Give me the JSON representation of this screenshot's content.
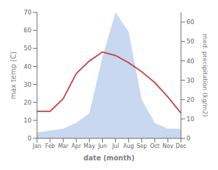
{
  "chart_data": {
    "type": "line",
    "categories": [
      "Jan",
      "Feb",
      "Mar",
      "Apr",
      "May",
      "Jun",
      "Jul",
      "Aug",
      "Sep",
      "Oct",
      "Nov",
      "Dec"
    ],
    "xlabel": "date (month)",
    "ylabel": "max temp (C)",
    "y2label": "med. precipitation (kg/m2)",
    "ylim": [
      0,
      70
    ],
    "yticks": [
      0,
      10,
      20,
      30,
      40,
      50,
      60,
      70
    ],
    "y2lim": [
      0,
      65
    ],
    "y2ticks": [
      0,
      10,
      20,
      30,
      40,
      50,
      60
    ],
    "series": [
      {
        "type": "area",
        "axis": "y2",
        "color": "#c8d8f0",
        "values": [
          3,
          4,
          5,
          8,
          13,
          42,
          65,
          55,
          20,
          8,
          5,
          5
        ]
      },
      {
        "type": "line",
        "color": "#c8474a",
        "values": [
          15,
          15,
          22,
          36,
          43,
          48,
          46,
          42,
          37,
          31,
          23,
          14
        ]
      }
    ]
  }
}
